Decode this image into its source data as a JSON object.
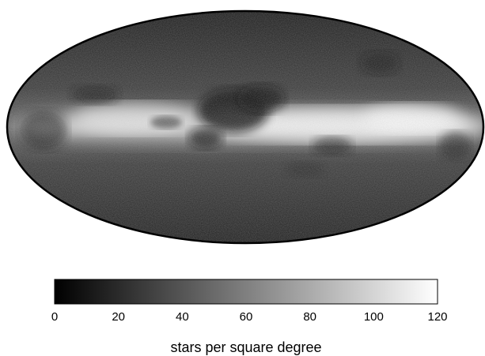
{
  "chart_data": {
    "type": "heatmap",
    "projection": "mollweide",
    "title": "",
    "colorbar": {
      "orientation": "horizontal",
      "range": [
        0,
        120
      ],
      "ticks": [
        0,
        20,
        40,
        60,
        80,
        100,
        120
      ],
      "tick_labels": [
        "0",
        "20",
        "40",
        "60",
        "80",
        "100",
        "120"
      ],
      "label": "stars per square degree",
      "colormap": "grayscale",
      "low_color": "#000000",
      "high_color": "#ffffff"
    },
    "grid": false,
    "legend": "none"
  }
}
